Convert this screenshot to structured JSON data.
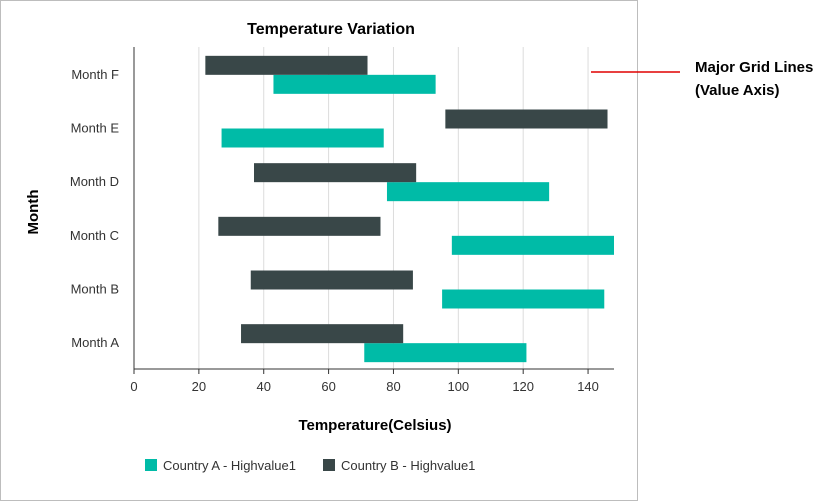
{
  "chart_data": {
    "type": "bar",
    "orientation": "horizontal",
    "subtype": "range",
    "title": "Temperature Variation",
    "xlabel": "Temperature(Celsius)",
    "ylabel": "Month",
    "xlim": [
      0,
      148
    ],
    "xticks": [
      0,
      20,
      40,
      60,
      80,
      100,
      120,
      140
    ],
    "categories": [
      "Month A",
      "Month B",
      "Month C",
      "Month D",
      "Month E",
      "Month F"
    ],
    "grid": "vertical major",
    "legend_position": "bottom",
    "series": [
      {
        "name": "Country A - Highvalue1",
        "color": "#00bba7",
        "ranges": [
          [
            71,
            121
          ],
          [
            95,
            145
          ],
          [
            98,
            148
          ],
          [
            78,
            128
          ],
          [
            27,
            77
          ],
          [
            43,
            93
          ]
        ]
      },
      {
        "name": "Country B - Highvalue1",
        "color": "#394748",
        "ranges": [
          [
            33,
            83
          ],
          [
            36,
            86
          ],
          [
            26,
            76
          ],
          [
            37,
            87
          ],
          [
            96,
            146
          ],
          [
            22,
            72
          ]
        ]
      }
    ],
    "annotation": {
      "lines": [
        "Major Grid Lines",
        "(Value Axis)"
      ],
      "color": "#e00000"
    }
  }
}
